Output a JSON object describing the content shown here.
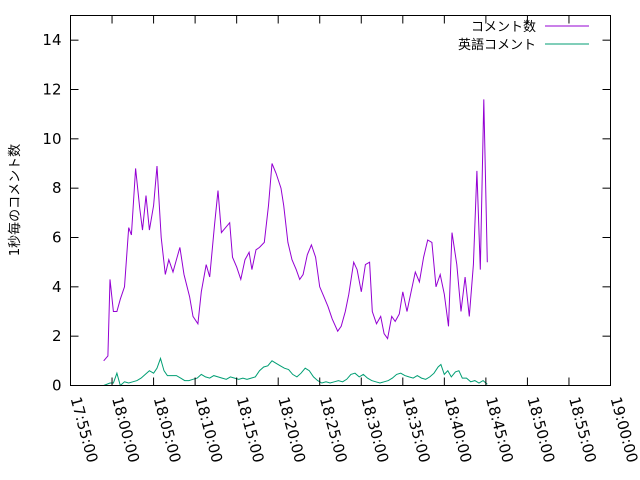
{
  "chart_data": {
    "type": "line",
    "title": "",
    "xlabel": "",
    "ylabel": "1秒毎のコメント数",
    "xlim": [
      "17:55:00",
      "19:00:00"
    ],
    "ylim": [
      0,
      15
    ],
    "x_ticks": [
      "17:55:00",
      "18:00:00",
      "18:05:00",
      "18:10:00",
      "18:15:00",
      "18:20:00",
      "18:25:00",
      "18:30:00",
      "18:35:00",
      "18:40:00",
      "18:45:00",
      "18:50:00",
      "18:55:00",
      "19:00:00"
    ],
    "y_ticks": [
      0,
      2,
      4,
      6,
      8,
      10,
      12,
      14
    ],
    "legend_position": "top-right",
    "grid": false,
    "series": [
      {
        "name": "コメント数",
        "color": "#9400d3",
        "points": [
          [
            "17:59:00",
            1.0
          ],
          [
            "17:59:30",
            1.2
          ],
          [
            "17:59:45",
            4.3
          ],
          [
            "18:00:10",
            3.0
          ],
          [
            "18:00:35",
            3.0
          ],
          [
            "18:01:00",
            3.5
          ],
          [
            "18:01:30",
            4.0
          ],
          [
            "18:02:00",
            6.4
          ],
          [
            "18:02:20",
            6.1
          ],
          [
            "18:02:50",
            8.8
          ],
          [
            "18:03:20",
            7.2
          ],
          [
            "18:03:40",
            6.3
          ],
          [
            "18:04:05",
            7.7
          ],
          [
            "18:04:30",
            6.3
          ],
          [
            "18:05:00",
            7.3
          ],
          [
            "18:05:25",
            8.9
          ],
          [
            "18:05:55",
            6.0
          ],
          [
            "18:06:25",
            4.5
          ],
          [
            "18:06:50",
            5.1
          ],
          [
            "18:07:20",
            4.6
          ],
          [
            "18:07:45",
            5.1
          ],
          [
            "18:08:10",
            5.6
          ],
          [
            "18:08:40",
            4.5
          ],
          [
            "18:09:20",
            3.6
          ],
          [
            "18:09:45",
            2.8
          ],
          [
            "18:10:20",
            2.5
          ],
          [
            "18:10:45",
            3.8
          ],
          [
            "18:11:20",
            4.9
          ],
          [
            "18:11:45",
            4.4
          ],
          [
            "18:12:20",
            6.5
          ],
          [
            "18:12:45",
            7.9
          ],
          [
            "18:13:10",
            6.2
          ],
          [
            "18:13:40",
            6.4
          ],
          [
            "18:14:10",
            6.6
          ],
          [
            "18:14:30",
            5.2
          ],
          [
            "18:15:00",
            4.8
          ],
          [
            "18:15:30",
            4.3
          ],
          [
            "18:16:00",
            5.1
          ],
          [
            "18:16:30",
            5.4
          ],
          [
            "18:16:50",
            4.7
          ],
          [
            "18:17:20",
            5.5
          ],
          [
            "18:17:45",
            5.6
          ],
          [
            "18:18:20",
            5.8
          ],
          [
            "18:18:50",
            7.3
          ],
          [
            "18:19:15",
            9.0
          ],
          [
            "18:19:45",
            8.6
          ],
          [
            "18:20:20",
            8.0
          ],
          [
            "18:20:40",
            7.3
          ],
          [
            "18:21:10",
            5.8
          ],
          [
            "18:21:40",
            5.1
          ],
          [
            "18:22:10",
            4.7
          ],
          [
            "18:22:35",
            4.3
          ],
          [
            "18:23:00",
            4.5
          ],
          [
            "18:23:30",
            5.3
          ],
          [
            "18:24:00",
            5.7
          ],
          [
            "18:24:30",
            5.2
          ],
          [
            "18:25:00",
            4.0
          ],
          [
            "18:25:30",
            3.6
          ],
          [
            "18:26:00",
            3.2
          ],
          [
            "18:26:30",
            2.7
          ],
          [
            "18:27:10",
            2.2
          ],
          [
            "18:27:35",
            2.4
          ],
          [
            "18:28:05",
            3.0
          ],
          [
            "18:28:30",
            3.7
          ],
          [
            "18:29:05",
            5.0
          ],
          [
            "18:29:30",
            4.7
          ],
          [
            "18:30:00",
            3.8
          ],
          [
            "18:30:30",
            4.9
          ],
          [
            "18:31:00",
            5.0
          ],
          [
            "18:31:20",
            3.0
          ],
          [
            "18:31:50",
            2.5
          ],
          [
            "18:32:20",
            2.8
          ],
          [
            "18:32:45",
            2.1
          ],
          [
            "18:33:10",
            1.9
          ],
          [
            "18:33:40",
            2.8
          ],
          [
            "18:34:05",
            2.6
          ],
          [
            "18:34:35",
            2.9
          ],
          [
            "18:35:00",
            3.8
          ],
          [
            "18:35:30",
            3.0
          ],
          [
            "18:36:00",
            3.8
          ],
          [
            "18:36:30",
            4.6
          ],
          [
            "18:37:00",
            4.2
          ],
          [
            "18:37:30",
            5.2
          ],
          [
            "18:38:00",
            5.9
          ],
          [
            "18:38:30",
            5.8
          ],
          [
            "18:39:00",
            4.0
          ],
          [
            "18:39:30",
            4.5
          ],
          [
            "18:40:00",
            3.7
          ],
          [
            "18:40:30",
            2.4
          ],
          [
            "18:40:55",
            6.2
          ],
          [
            "18:41:30",
            4.9
          ],
          [
            "18:42:00",
            3.0
          ],
          [
            "18:42:30",
            4.4
          ],
          [
            "18:43:00",
            2.8
          ],
          [
            "18:43:30",
            4.9
          ],
          [
            "18:43:55",
            8.7
          ],
          [
            "18:44:20",
            4.7
          ],
          [
            "18:44:45",
            11.6
          ],
          [
            "18:45:10",
            5.0
          ]
        ]
      },
      {
        "name": "英語コメント",
        "color": "#009e73",
        "points": [
          [
            "17:59:00",
            0.0
          ],
          [
            "17:59:45",
            0.1
          ],
          [
            "18:00:10",
            0.1
          ],
          [
            "18:00:35",
            0.5
          ],
          [
            "18:01:00",
            0.0
          ],
          [
            "18:01:30",
            0.15
          ],
          [
            "18:02:00",
            0.1
          ],
          [
            "18:02:30",
            0.15
          ],
          [
            "18:03:00",
            0.2
          ],
          [
            "18:03:30",
            0.3
          ],
          [
            "18:04:00",
            0.45
          ],
          [
            "18:04:30",
            0.6
          ],
          [
            "18:05:00",
            0.5
          ],
          [
            "18:05:25",
            0.7
          ],
          [
            "18:05:50",
            1.1
          ],
          [
            "18:06:15",
            0.6
          ],
          [
            "18:06:40",
            0.4
          ],
          [
            "18:07:15",
            0.4
          ],
          [
            "18:07:45",
            0.4
          ],
          [
            "18:08:15",
            0.3
          ],
          [
            "18:08:45",
            0.2
          ],
          [
            "18:09:15",
            0.2
          ],
          [
            "18:09:45",
            0.25
          ],
          [
            "18:10:15",
            0.3
          ],
          [
            "18:10:45",
            0.45
          ],
          [
            "18:11:15",
            0.35
          ],
          [
            "18:11:45",
            0.3
          ],
          [
            "18:12:15",
            0.4
          ],
          [
            "18:12:45",
            0.35
          ],
          [
            "18:13:15",
            0.3
          ],
          [
            "18:13:45",
            0.25
          ],
          [
            "18:14:15",
            0.35
          ],
          [
            "18:14:45",
            0.3
          ],
          [
            "18:15:15",
            0.25
          ],
          [
            "18:15:45",
            0.3
          ],
          [
            "18:16:15",
            0.25
          ],
          [
            "18:16:45",
            0.3
          ],
          [
            "18:17:15",
            0.35
          ],
          [
            "18:17:45",
            0.6
          ],
          [
            "18:18:15",
            0.75
          ],
          [
            "18:18:45",
            0.8
          ],
          [
            "18:19:15",
            1.0
          ],
          [
            "18:19:45",
            0.9
          ],
          [
            "18:20:15",
            0.8
          ],
          [
            "18:20:45",
            0.7
          ],
          [
            "18:21:15",
            0.65
          ],
          [
            "18:21:45",
            0.45
          ],
          [
            "18:22:15",
            0.35
          ],
          [
            "18:22:45",
            0.5
          ],
          [
            "18:23:15",
            0.7
          ],
          [
            "18:23:45",
            0.6
          ],
          [
            "18:24:15",
            0.35
          ],
          [
            "18:24:45",
            0.2
          ],
          [
            "18:25:15",
            0.1
          ],
          [
            "18:25:45",
            0.15
          ],
          [
            "18:26:15",
            0.1
          ],
          [
            "18:26:45",
            0.15
          ],
          [
            "18:27:15",
            0.2
          ],
          [
            "18:27:45",
            0.15
          ],
          [
            "18:28:15",
            0.25
          ],
          [
            "18:28:45",
            0.45
          ],
          [
            "18:29:15",
            0.5
          ],
          [
            "18:29:45",
            0.35
          ],
          [
            "18:30:15",
            0.45
          ],
          [
            "18:30:45",
            0.3
          ],
          [
            "18:31:15",
            0.2
          ],
          [
            "18:31:45",
            0.15
          ],
          [
            "18:32:15",
            0.1
          ],
          [
            "18:32:45",
            0.15
          ],
          [
            "18:33:15",
            0.2
          ],
          [
            "18:33:45",
            0.3
          ],
          [
            "18:34:15",
            0.45
          ],
          [
            "18:34:45",
            0.5
          ],
          [
            "18:35:15",
            0.4
          ],
          [
            "18:35:45",
            0.35
          ],
          [
            "18:36:15",
            0.3
          ],
          [
            "18:36:45",
            0.4
          ],
          [
            "18:37:15",
            0.3
          ],
          [
            "18:37:45",
            0.25
          ],
          [
            "18:38:15",
            0.35
          ],
          [
            "18:38:45",
            0.5
          ],
          [
            "18:39:15",
            0.75
          ],
          [
            "18:39:35",
            0.85
          ],
          [
            "18:40:00",
            0.45
          ],
          [
            "18:40:25",
            0.6
          ],
          [
            "18:40:50",
            0.35
          ],
          [
            "18:41:20",
            0.55
          ],
          [
            "18:41:45",
            0.6
          ],
          [
            "18:42:10",
            0.3
          ],
          [
            "18:42:40",
            0.3
          ],
          [
            "18:43:10",
            0.15
          ],
          [
            "18:43:40",
            0.2
          ],
          [
            "18:44:10",
            0.1
          ],
          [
            "18:44:40",
            0.2
          ],
          [
            "18:45:10",
            0.05
          ]
        ]
      }
    ]
  }
}
